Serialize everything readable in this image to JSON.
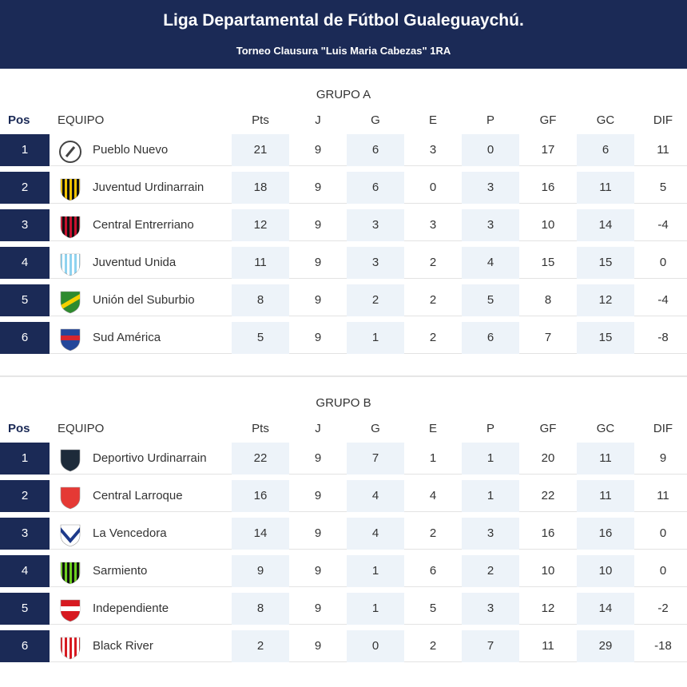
{
  "header": {
    "title": "Liga Departamental de Fútbol Gualeguaychú.",
    "subtitle": "Torneo Clausura \"Luis Maria Cabezas\" 1RA"
  },
  "columns": [
    "Pos",
    "EQUIPO",
    "Pts",
    "J",
    "G",
    "E",
    "P",
    "GF",
    "GC",
    "DIF"
  ],
  "colors": {
    "navy": "#1b2a56",
    "shade": "#edf3f9"
  },
  "groups": [
    {
      "title": "GRUPO A",
      "rows": [
        {
          "pos": "1",
          "team": "Pueblo Nuevo",
          "crest": {
            "icon": "pueblo-nuevo-crest",
            "c1": "#ffffff",
            "c2": "#444444",
            "pattern": "ring"
          },
          "pts": "21",
          "j": "9",
          "g": "6",
          "e": "3",
          "p": "0",
          "gf": "17",
          "gc": "6",
          "dif": "11"
        },
        {
          "pos": "2",
          "team": "Juventud Urdinarrain",
          "crest": {
            "icon": "juventud-urdinarrain-crest",
            "c1": "#f2c300",
            "c2": "#111111",
            "pattern": "vstripes"
          },
          "pts": "18",
          "j": "9",
          "g": "6",
          "e": "0",
          "p": "3",
          "gf": "16",
          "gc": "11",
          "dif": "5"
        },
        {
          "pos": "3",
          "team": "Central Entrerriano",
          "crest": {
            "icon": "central-entrerriano-crest",
            "c1": "#c8102e",
            "c2": "#111111",
            "pattern": "vstripes"
          },
          "pts": "12",
          "j": "9",
          "g": "3",
          "e": "3",
          "p": "3",
          "gf": "10",
          "gc": "14",
          "dif": "-4"
        },
        {
          "pos": "4",
          "team": "Juventud Unida",
          "crest": {
            "icon": "juventud-unida-crest",
            "c1": "#8fd3f0",
            "c2": "#ffffff",
            "pattern": "vstripes"
          },
          "pts": "11",
          "j": "9",
          "g": "3",
          "e": "2",
          "p": "4",
          "gf": "15",
          "gc": "15",
          "dif": "0"
        },
        {
          "pos": "5",
          "team": "Unión del Suburbio",
          "crest": {
            "icon": "union-del-suburbio-crest",
            "c1": "#2e8b2e",
            "c2": "#f5d000",
            "pattern": "diag"
          },
          "pts": "8",
          "j": "9",
          "g": "2",
          "e": "2",
          "p": "5",
          "gf": "8",
          "gc": "12",
          "dif": "-4"
        },
        {
          "pos": "6",
          "team": "Sud América",
          "crest": {
            "icon": "sud-america-crest",
            "c1": "#24479a",
            "c2": "#d7262e",
            "pattern": "band"
          },
          "pts": "5",
          "j": "9",
          "g": "1",
          "e": "2",
          "p": "6",
          "gf": "7",
          "gc": "15",
          "dif": "-8"
        }
      ]
    },
    {
      "title": "GRUPO B",
      "rows": [
        {
          "pos": "1",
          "team": "Deportivo Urdinarrain",
          "crest": {
            "icon": "deportivo-urdinarrain-crest",
            "c1": "#1d2b3a",
            "c2": "#ffffff",
            "pattern": "solid"
          },
          "pts": "22",
          "j": "9",
          "g": "7",
          "e": "1",
          "p": "1",
          "gf": "20",
          "gc": "11",
          "dif": "9"
        },
        {
          "pos": "2",
          "team": "Central Larroque",
          "crest": {
            "icon": "central-larroque-crest",
            "c1": "#e53935",
            "c2": "#ffffff",
            "pattern": "solid"
          },
          "pts": "16",
          "j": "9",
          "g": "4",
          "e": "4",
          "p": "1",
          "gf": "22",
          "gc": "11",
          "dif": "11"
        },
        {
          "pos": "3",
          "team": "La Vencedora",
          "crest": {
            "icon": "la-vencedora-crest",
            "c1": "#ffffff",
            "c2": "#1e3a8a",
            "pattern": "chevron"
          },
          "pts": "14",
          "j": "9",
          "g": "4",
          "e": "2",
          "p": "3",
          "gf": "16",
          "gc": "16",
          "dif": "0"
        },
        {
          "pos": "4",
          "team": "Sarmiento",
          "crest": {
            "icon": "sarmiento-crest",
            "c1": "#6ccf1f",
            "c2": "#111111",
            "pattern": "vstripes"
          },
          "pts": "9",
          "j": "9",
          "g": "1",
          "e": "6",
          "p": "2",
          "gf": "10",
          "gc": "10",
          "dif": "0"
        },
        {
          "pos": "5",
          "team": "Independiente",
          "crest": {
            "icon": "independiente-crest",
            "c1": "#d71920",
            "c2": "#ffffff",
            "pattern": "band"
          },
          "pts": "8",
          "j": "9",
          "g": "1",
          "e": "5",
          "p": "3",
          "gf": "12",
          "gc": "14",
          "dif": "-2"
        },
        {
          "pos": "6",
          "team": "Black River",
          "crest": {
            "icon": "black-river-crest",
            "c1": "#d71920",
            "c2": "#ffffff",
            "pattern": "vstripes"
          },
          "pts": "2",
          "j": "9",
          "g": "0",
          "e": "2",
          "p": "7",
          "gf": "11",
          "gc": "29",
          "dif": "-18"
        }
      ]
    }
  ]
}
